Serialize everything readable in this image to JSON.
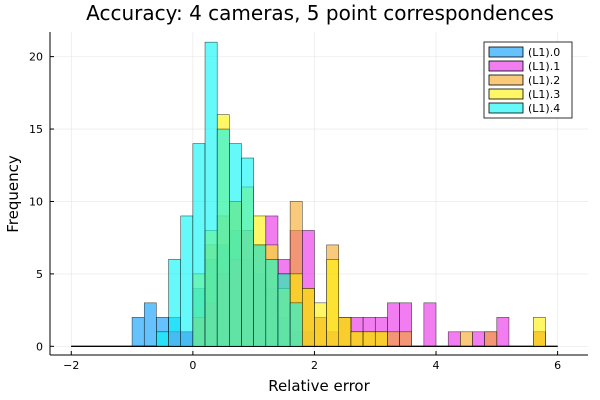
{
  "chart_data": {
    "type": "bar",
    "title": "Accuracy: 4 cameras, 5 point correspondences",
    "xlabel": "Relative error",
    "ylabel": "Frequency",
    "xlim": [
      -2.35,
      6.5
    ],
    "ylim": [
      -0.6,
      21.7
    ],
    "xticks": [
      -2,
      0,
      2,
      4,
      6
    ],
    "yticks": [
      0,
      5,
      10,
      15,
      20
    ],
    "grid": true,
    "legend_position": "top-right",
    "bin_width": 0.2,
    "opacity": 0.6,
    "series": [
      {
        "name": "(L1).0",
        "color": "#009AFA",
        "bins": [
          [
            -1.0,
            2
          ],
          [
            -0.8,
            3
          ],
          [
            -0.6,
            2
          ],
          [
            -0.4,
            2
          ],
          [
            -0.2,
            1
          ],
          [
            0.0,
            4
          ],
          [
            0.2,
            6
          ],
          [
            0.4,
            7
          ],
          [
            0.6,
            8
          ],
          [
            0.8,
            6
          ],
          [
            1.0,
            5
          ],
          [
            1.2,
            4
          ],
          [
            1.4,
            2
          ],
          [
            1.6,
            1
          ],
          [
            1.8,
            1
          ]
        ]
      },
      {
        "name": "(L1).1",
        "color": "#E826E8",
        "bins": [
          [
            -0.4,
            1
          ],
          [
            -0.2,
            1
          ],
          [
            0.0,
            2
          ],
          [
            0.2,
            3
          ],
          [
            0.4,
            5
          ],
          [
            0.6,
            6
          ],
          [
            0.8,
            8
          ],
          [
            1.0,
            7
          ],
          [
            1.2,
            9
          ],
          [
            1.4,
            6
          ],
          [
            1.6,
            8
          ],
          [
            1.8,
            8
          ],
          [
            2.0,
            2
          ],
          [
            2.2,
            1
          ],
          [
            2.4,
            2
          ],
          [
            2.6,
            2
          ],
          [
            2.8,
            2
          ],
          [
            3.0,
            2
          ],
          [
            3.2,
            3
          ],
          [
            3.4,
            3
          ],
          [
            3.8,
            3
          ],
          [
            4.2,
            1
          ],
          [
            4.6,
            1
          ],
          [
            4.8,
            1
          ],
          [
            5.0,
            2
          ],
          [
            5.6,
            1
          ]
        ]
      },
      {
        "name": "(L1).2",
        "color": "#F5A623",
        "bins": [
          [
            0.0,
            2
          ],
          [
            0.2,
            7
          ],
          [
            0.4,
            9
          ],
          [
            0.6,
            10
          ],
          [
            0.8,
            8
          ],
          [
            1.0,
            7
          ],
          [
            1.2,
            6
          ],
          [
            1.4,
            5
          ],
          [
            1.6,
            10
          ],
          [
            1.8,
            4
          ],
          [
            2.0,
            2
          ],
          [
            2.2,
            7
          ],
          [
            2.4,
            2
          ],
          [
            2.6,
            1
          ],
          [
            2.8,
            1
          ],
          [
            3.0,
            1
          ],
          [
            3.2,
            1
          ],
          [
            3.4,
            1
          ],
          [
            4.4,
            1
          ],
          [
            4.8,
            1
          ],
          [
            5.6,
            1
          ]
        ]
      },
      {
        "name": "(L1).3",
        "color": "#FFF200",
        "bins": [
          [
            0.0,
            5
          ],
          [
            0.2,
            8
          ],
          [
            0.4,
            16
          ],
          [
            0.6,
            10
          ],
          [
            0.8,
            11
          ],
          [
            1.0,
            9
          ],
          [
            1.2,
            7
          ],
          [
            1.4,
            4
          ],
          [
            1.6,
            5
          ],
          [
            1.8,
            4
          ],
          [
            2.0,
            3
          ],
          [
            2.2,
            6
          ],
          [
            2.4,
            2
          ],
          [
            2.6,
            1
          ],
          [
            2.8,
            1
          ],
          [
            3.0,
            1
          ],
          [
            5.6,
            2
          ]
        ]
      },
      {
        "name": "(L1).4",
        "color": "#00F5F5",
        "bins": [
          [
            -0.6,
            1
          ],
          [
            -0.4,
            6
          ],
          [
            -0.2,
            9
          ],
          [
            0.0,
            14
          ],
          [
            0.2,
            21
          ],
          [
            0.4,
            15
          ],
          [
            0.6,
            14
          ],
          [
            0.8,
            13
          ],
          [
            1.0,
            7
          ],
          [
            1.2,
            6
          ],
          [
            1.4,
            5
          ],
          [
            1.6,
            3
          ]
        ]
      }
    ]
  }
}
